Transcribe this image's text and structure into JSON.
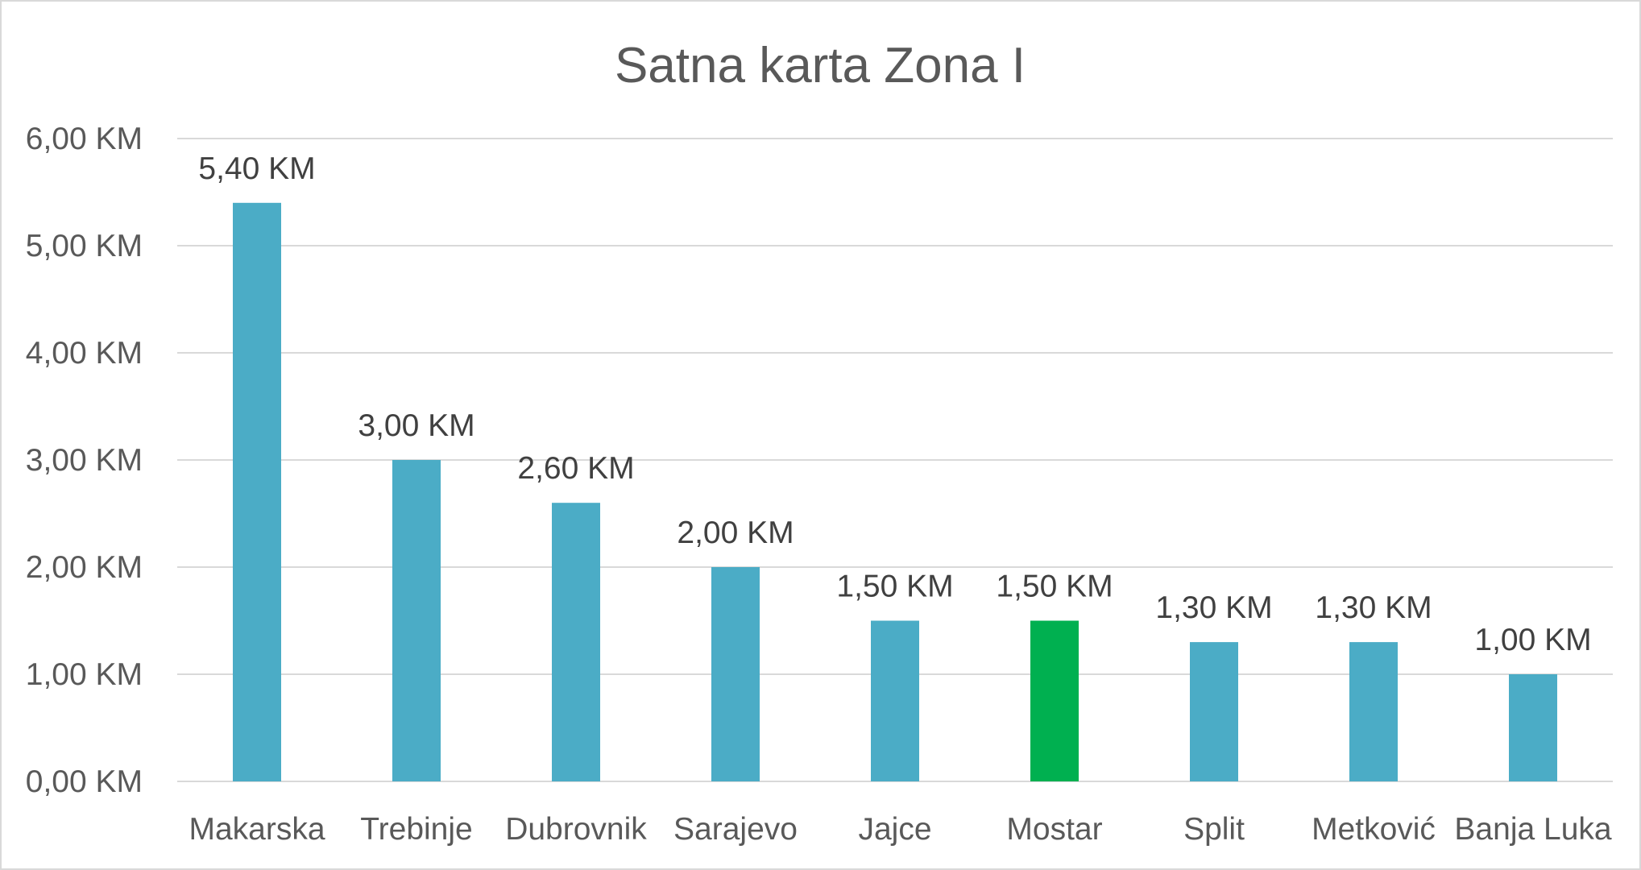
{
  "chart_data": {
    "type": "bar",
    "title": "Satna karta Zona I",
    "xlabel": "",
    "ylabel": "",
    "categories": [
      "Makarska",
      "Trebinje",
      "Dubrovnik",
      "Sarajevo",
      "Jajce",
      "Mostar",
      "Split",
      "Metković",
      "Banja Luka"
    ],
    "values": [
      5.4,
      3.0,
      2.6,
      2.0,
      1.5,
      1.5,
      1.3,
      1.3,
      1.0
    ],
    "data_labels": [
      "5,40 KM",
      "3,00 KM",
      "2,60 KM",
      "2,00 KM",
      "1,50 KM",
      "1,50 KM",
      "1,30 KM",
      "1,30 KM",
      "1,00 KM"
    ],
    "ylim": [
      0,
      6
    ],
    "yticks": [
      0,
      1,
      2,
      3,
      4,
      5,
      6
    ],
    "ytick_labels": [
      "0,00 KM",
      "1,00 KM",
      "2,00 KM",
      "3,00 KM",
      "4,00 KM",
      "5,00 KM",
      "6,00 KM"
    ],
    "grid": true,
    "legend": "none",
    "colors": {
      "bar": "#4bacc6",
      "highlight": "#00b050",
      "grid": "#d9d9d9",
      "text": "#595959"
    },
    "highlight_category": "Mostar"
  }
}
